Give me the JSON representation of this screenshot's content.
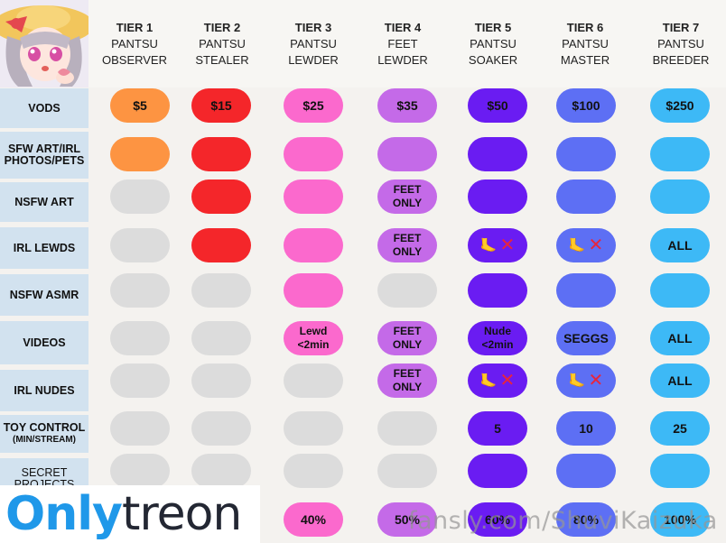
{
  "tiers": [
    {
      "tier": "TIER 1",
      "name_line1": "PANTSU",
      "name_line2": "OBSERVER"
    },
    {
      "tier": "TIER 2",
      "name_line1": "PANTSU",
      "name_line2": "STEALER"
    },
    {
      "tier": "TIER 3",
      "name_line1": "PANTSU",
      "name_line2": "LEWDER"
    },
    {
      "tier": "TIER 4",
      "name_line1": "FEET",
      "name_line2": "LEWDER"
    },
    {
      "tier": "TIER 5",
      "name_line1": "PANTSU",
      "name_line2": "SOAKER"
    },
    {
      "tier": "TIER 6",
      "name_line1": "PANTSU",
      "name_line2": "MASTER"
    },
    {
      "tier": "TIER 7",
      "name_line1": "PANTSU",
      "name_line2": "BREEDER"
    }
  ],
  "tier_colors": [
    "#fd9442",
    "#f4262a",
    "#fb69cd",
    "#c46ae8",
    "#6a1cf2",
    "#5d6ff4",
    "#3db9f6"
  ],
  "rows": {
    "vods": "VODS",
    "sfw_line1": "SFW ART/IRL",
    "sfw_line2": "PHOTOS/PETS",
    "nsfw_art": "NSFW ART",
    "irl_lewds": "IRL LEWDS",
    "nsfw_asmr": "NSFW ASMR",
    "videos": "VIDEOS",
    "irl_nudes": "IRL NUDES",
    "toy_line1": "TOY CONTROL",
    "toy_line2": "(MIN/STREAM)",
    "secret_line1": "SECRET",
    "secret_line2": "PROJECTS"
  },
  "prices": [
    "$5",
    "$15",
    "$25",
    "$35",
    "$50",
    "$100",
    "$250"
  ],
  "cells": {
    "feet_line1": "FEET",
    "feet_line2": "ONLY",
    "all": "ALL",
    "lewd_line1": "Lewd",
    "lewd_line2": "<2min",
    "nude_line1": "Nude",
    "nude_line2": "<2min",
    "seggs": "SEGGS",
    "toy_t5": "5",
    "toy_t6": "10",
    "toy_t7": "25",
    "feet_icon": "foot-icon",
    "x_icon": "cross-icon"
  },
  "discounts": [
    "40%",
    "50%",
    "60%",
    "80%",
    "100%"
  ],
  "watermark": "fansly.com/ShuviKaizuka",
  "logo": {
    "part1": "Only",
    "part2": "treon"
  },
  "grey_color": "#dcdcdc"
}
